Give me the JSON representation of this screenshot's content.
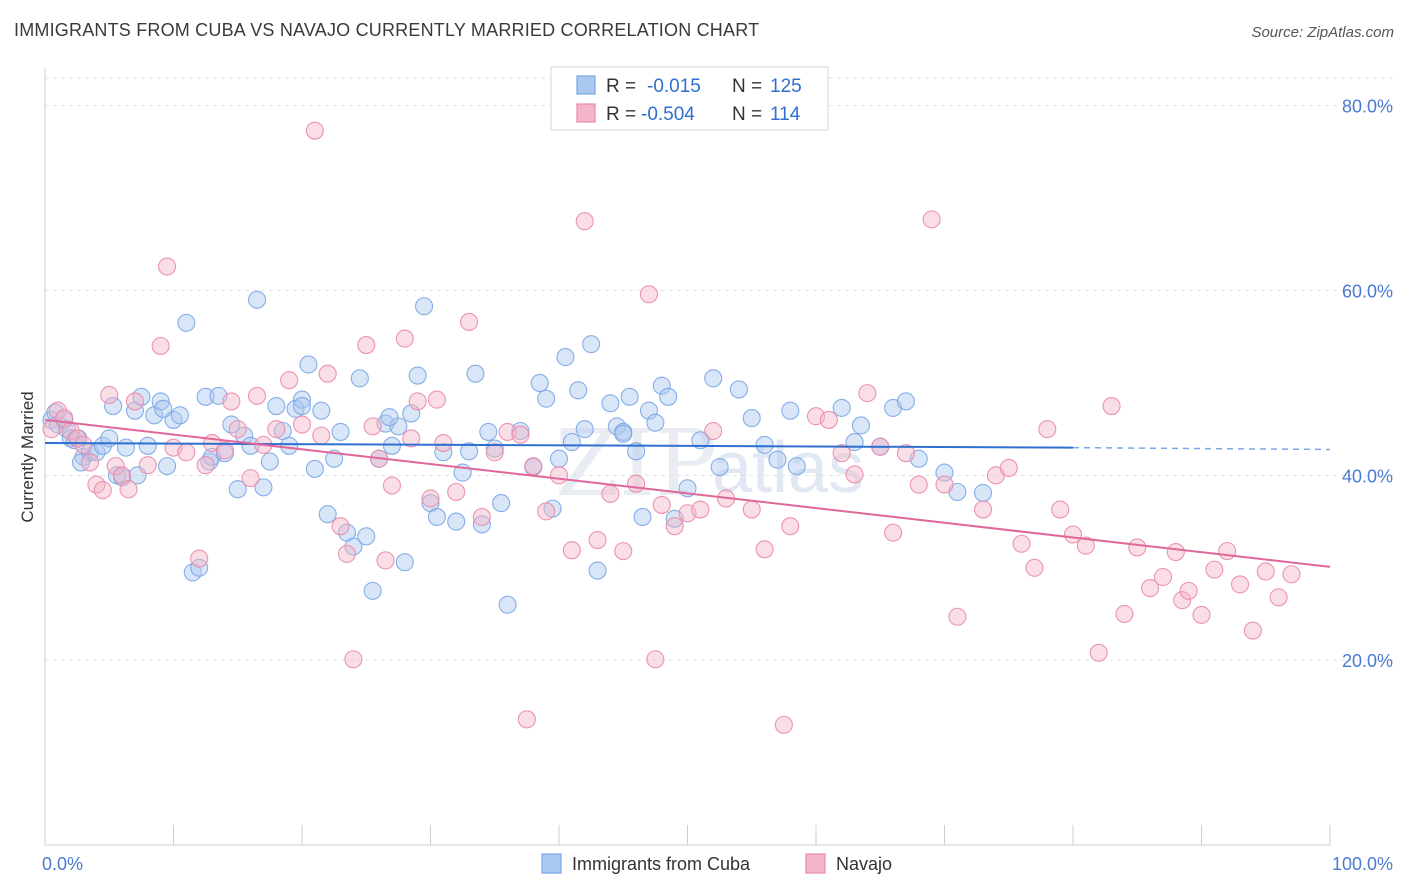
{
  "header": {
    "title": "IMMIGRANTS FROM CUBA VS NAVAJO CURRENTLY MARRIED CORRELATION CHART",
    "source": "Source: ZipAtlas.com"
  },
  "watermark": {
    "part1": "ZIP",
    "part2": "atlas"
  },
  "legend": {
    "rows": [
      {
        "r_label": "R =",
        "r_value": "-0.015",
        "n_label": "N =",
        "n_value": "125",
        "color": "#aac8f0"
      },
      {
        "r_label": "R =",
        "r_value": "-0.504",
        "n_label": "N =",
        "n_value": "114",
        "color": "#f5b5c8"
      }
    ]
  },
  "bottom_legend": [
    {
      "label": "Immigrants from Cuba",
      "color": "#aac8f0"
    },
    {
      "label": "Navajo",
      "color": "#f5b5c8"
    }
  ],
  "chart_data": {
    "type": "scatter",
    "title": "IMMIGRANTS FROM CUBA VS NAVAJO CURRENTLY MARRIED CORRELATION CHART",
    "xlabel": "",
    "ylabel": "Currently Married",
    "xlim": [
      0,
      100
    ],
    "ylim": [
      0,
      83
    ],
    "y_ticks": [
      {
        "value": 20,
        "label": "20.0%"
      },
      {
        "value": 40,
        "label": "40.0%"
      },
      {
        "value": 60,
        "label": "60.0%"
      },
      {
        "value": 80,
        "label": "80.0%"
      }
    ],
    "x_tick_labels": [
      {
        "value": 0,
        "label": "0.0%"
      },
      {
        "value": 100,
        "label": "100.0%"
      }
    ],
    "grid": true,
    "series": [
      {
        "name": "Immigrants from Cuba",
        "color": "#7aa6e6",
        "fill": "#aac8f0",
        "trend": {
          "x0": 0,
          "y0": 43.5,
          "x1": 80,
          "y1": 43.0,
          "dashed_to": 100,
          "dashed_y": 42.8
        },
        "points": [
          [
            0.5,
            46
          ],
          [
            0.8,
            46.8
          ],
          [
            1,
            45.5
          ],
          [
            1.5,
            46
          ],
          [
            1.7,
            45
          ],
          [
            2,
            44
          ],
          [
            2.3,
            43.8
          ],
          [
            2.6,
            44
          ],
          [
            3,
            42
          ],
          [
            3.5,
            42.5
          ],
          [
            4,
            42.5
          ],
          [
            4.5,
            43.2
          ],
          [
            5,
            44
          ],
          [
            5.3,
            47.5
          ],
          [
            5.6,
            40
          ],
          [
            6,
            39.8
          ],
          [
            6.3,
            43
          ],
          [
            7,
            47
          ],
          [
            7.5,
            48.5
          ],
          [
            8,
            43.2
          ],
          [
            8.5,
            46.5
          ],
          [
            9,
            48
          ],
          [
            9.5,
            41
          ],
          [
            10,
            46
          ],
          [
            10.5,
            46.5
          ],
          [
            11,
            56.5
          ],
          [
            11.5,
            29.5
          ],
          [
            12,
            30
          ],
          [
            12.5,
            48.5
          ],
          [
            12.8,
            41.5
          ],
          [
            13,
            42
          ],
          [
            13.5,
            48.6
          ],
          [
            14,
            42.4
          ],
          [
            14.5,
            45.5
          ],
          [
            15,
            38.5
          ],
          [
            15.5,
            44.3
          ],
          [
            16,
            43.2
          ],
          [
            16.5,
            59
          ],
          [
            17,
            38.7
          ],
          [
            17.5,
            41.5
          ],
          [
            18,
            47.5
          ],
          [
            18.5,
            44.8
          ],
          [
            19,
            43.2
          ],
          [
            19.5,
            47.2
          ],
          [
            20,
            48.2
          ],
          [
            20.5,
            52
          ],
          [
            21,
            40.7
          ],
          [
            21.5,
            47
          ],
          [
            22,
            35.8
          ],
          [
            22.5,
            41.8
          ],
          [
            23,
            44.7
          ],
          [
            23.5,
            33.8
          ],
          [
            24,
            32.3
          ],
          [
            24.5,
            50.5
          ],
          [
            25,
            33.4
          ],
          [
            25.5,
            27.5
          ],
          [
            26,
            41.8
          ],
          [
            26.5,
            45.6
          ],
          [
            27,
            43.2
          ],
          [
            27.5,
            45.3
          ],
          [
            28,
            30.6
          ],
          [
            28.5,
            46.7
          ],
          [
            29,
            50.8
          ],
          [
            29.5,
            58.3
          ],
          [
            30,
            37
          ],
          [
            30.5,
            35.5
          ],
          [
            31,
            42.5
          ],
          [
            32,
            35
          ],
          [
            32.5,
            40.3
          ],
          [
            33,
            42.6
          ],
          [
            33.5,
            51
          ],
          [
            34,
            34.7
          ],
          [
            34.5,
            44.7
          ],
          [
            35,
            42.9
          ],
          [
            35.5,
            37
          ],
          [
            36,
            26
          ],
          [
            37,
            44.8
          ],
          [
            38,
            40.9
          ],
          [
            38.5,
            50
          ],
          [
            39,
            48.3
          ],
          [
            39.5,
            36.4
          ],
          [
            40,
            41.8
          ],
          [
            40.5,
            52.8
          ],
          [
            41,
            43.6
          ],
          [
            41.5,
            49.2
          ],
          [
            42,
            45
          ],
          [
            42.5,
            54.2
          ],
          [
            43,
            29.7
          ],
          [
            44,
            47.8
          ],
          [
            44.5,
            45.3
          ],
          [
            45,
            44.7
          ],
          [
            45.5,
            48.5
          ],
          [
            46,
            42.6
          ],
          [
            46.5,
            35.5
          ],
          [
            47,
            47
          ],
          [
            47.5,
            45.7
          ],
          [
            48,
            49.7
          ],
          [
            48.5,
            48.5
          ],
          [
            49,
            35.3
          ],
          [
            50,
            38.6
          ],
          [
            51,
            43.8
          ],
          [
            52,
            50.5
          ],
          [
            52.5,
            40.9
          ],
          [
            54,
            49.3
          ],
          [
            55,
            46.2
          ],
          [
            56,
            43.3
          ],
          [
            57,
            41.7
          ],
          [
            58,
            47
          ],
          [
            58.5,
            41
          ],
          [
            62,
            47.3
          ],
          [
            63,
            43.6
          ],
          [
            63.5,
            45.4
          ],
          [
            65,
            43.1
          ],
          [
            66,
            47.3
          ],
          [
            67,
            48
          ],
          [
            68,
            41.8
          ],
          [
            70,
            40.3
          ],
          [
            71,
            38.2
          ],
          [
            73,
            38.1
          ],
          [
            45,
            44.5
          ],
          [
            2.8,
            41.4
          ],
          [
            7.2,
            40
          ],
          [
            9.2,
            47.2
          ],
          [
            20,
            47.5
          ],
          [
            26.8,
            46.3
          ]
        ]
      },
      {
        "name": "Navajo",
        "color": "#ea8aa8",
        "fill": "#f5b5c8",
        "trend": {
          "x0": 0,
          "y0": 46,
          "x1": 100,
          "y1": 30.1
        },
        "points": [
          [
            0.5,
            45
          ],
          [
            1,
            47
          ],
          [
            1.5,
            46.2
          ],
          [
            2,
            44.8
          ],
          [
            2.5,
            44
          ],
          [
            3,
            43.3
          ],
          [
            3.5,
            41.4
          ],
          [
            4,
            39
          ],
          [
            4.5,
            38.4
          ],
          [
            5,
            48.7
          ],
          [
            5.5,
            41
          ],
          [
            6,
            40
          ],
          [
            6.5,
            38.5
          ],
          [
            7,
            48
          ],
          [
            8,
            41.1
          ],
          [
            9,
            54
          ],
          [
            9.5,
            62.6
          ],
          [
            10,
            43
          ],
          [
            11,
            42.5
          ],
          [
            12,
            31
          ],
          [
            12.5,
            41.1
          ],
          [
            13,
            43.5
          ],
          [
            14,
            42.7
          ],
          [
            14.5,
            48
          ],
          [
            15,
            45
          ],
          [
            16,
            39.7
          ],
          [
            16.5,
            48.6
          ],
          [
            17,
            43.3
          ],
          [
            18,
            45
          ],
          [
            19,
            50.3
          ],
          [
            20,
            45.5
          ],
          [
            21,
            77.3
          ],
          [
            21.5,
            44.3
          ],
          [
            22,
            51
          ],
          [
            23,
            34.5
          ],
          [
            23.5,
            31.5
          ],
          [
            24,
            20.1
          ],
          [
            25,
            54.1
          ],
          [
            25.5,
            45.3
          ],
          [
            26,
            41.8
          ],
          [
            26.5,
            30.8
          ],
          [
            27,
            38.9
          ],
          [
            28,
            54.8
          ],
          [
            28.5,
            44
          ],
          [
            29,
            48
          ],
          [
            30,
            37.5
          ],
          [
            30.5,
            48.2
          ],
          [
            31,
            43.5
          ],
          [
            32,
            38.2
          ],
          [
            33,
            56.6
          ],
          [
            34,
            35.5
          ],
          [
            35,
            42.5
          ],
          [
            36,
            44.7
          ],
          [
            37,
            44.4
          ],
          [
            37.5,
            13.6
          ],
          [
            38,
            41
          ],
          [
            39,
            36.1
          ],
          [
            40,
            40
          ],
          [
            41,
            31.9
          ],
          [
            42,
            67.5
          ],
          [
            43,
            33
          ],
          [
            44,
            38
          ],
          [
            45,
            31.8
          ],
          [
            46,
            39.1
          ],
          [
            47,
            59.6
          ],
          [
            47.5,
            20.1
          ],
          [
            48,
            36.8
          ],
          [
            49,
            34.5
          ],
          [
            50,
            35.9
          ],
          [
            51,
            36.3
          ],
          [
            52,
            44.8
          ],
          [
            53,
            37.5
          ],
          [
            55,
            36.3
          ],
          [
            56,
            32
          ],
          [
            57.5,
            13
          ],
          [
            58,
            34.5
          ],
          [
            60,
            46.4
          ],
          [
            61,
            46
          ],
          [
            62,
            42.4
          ],
          [
            63,
            40.1
          ],
          [
            64,
            48.9
          ],
          [
            65,
            43.1
          ],
          [
            66,
            33.8
          ],
          [
            67,
            42.4
          ],
          [
            68,
            39
          ],
          [
            69,
            67.7
          ],
          [
            70,
            39
          ],
          [
            71,
            24.7
          ],
          [
            73,
            36.3
          ],
          [
            74,
            40
          ],
          [
            75,
            40.8
          ],
          [
            76,
            32.6
          ],
          [
            77,
            30
          ],
          [
            78,
            45
          ],
          [
            79,
            36.3
          ],
          [
            80,
            33.6
          ],
          [
            81,
            32.4
          ],
          [
            82,
            20.8
          ],
          [
            83,
            47.5
          ],
          [
            84,
            25
          ],
          [
            85,
            32.2
          ],
          [
            86,
            27.8
          ],
          [
            87,
            29
          ],
          [
            88,
            31.7
          ],
          [
            88.5,
            26.5
          ],
          [
            89,
            27.5
          ],
          [
            90,
            24.9
          ],
          [
            91,
            29.8
          ],
          [
            92,
            31.8
          ],
          [
            93,
            28.2
          ],
          [
            94,
            23.2
          ],
          [
            95,
            29.6
          ],
          [
            96,
            26.8
          ],
          [
            97,
            29.3
          ]
        ]
      }
    ]
  }
}
